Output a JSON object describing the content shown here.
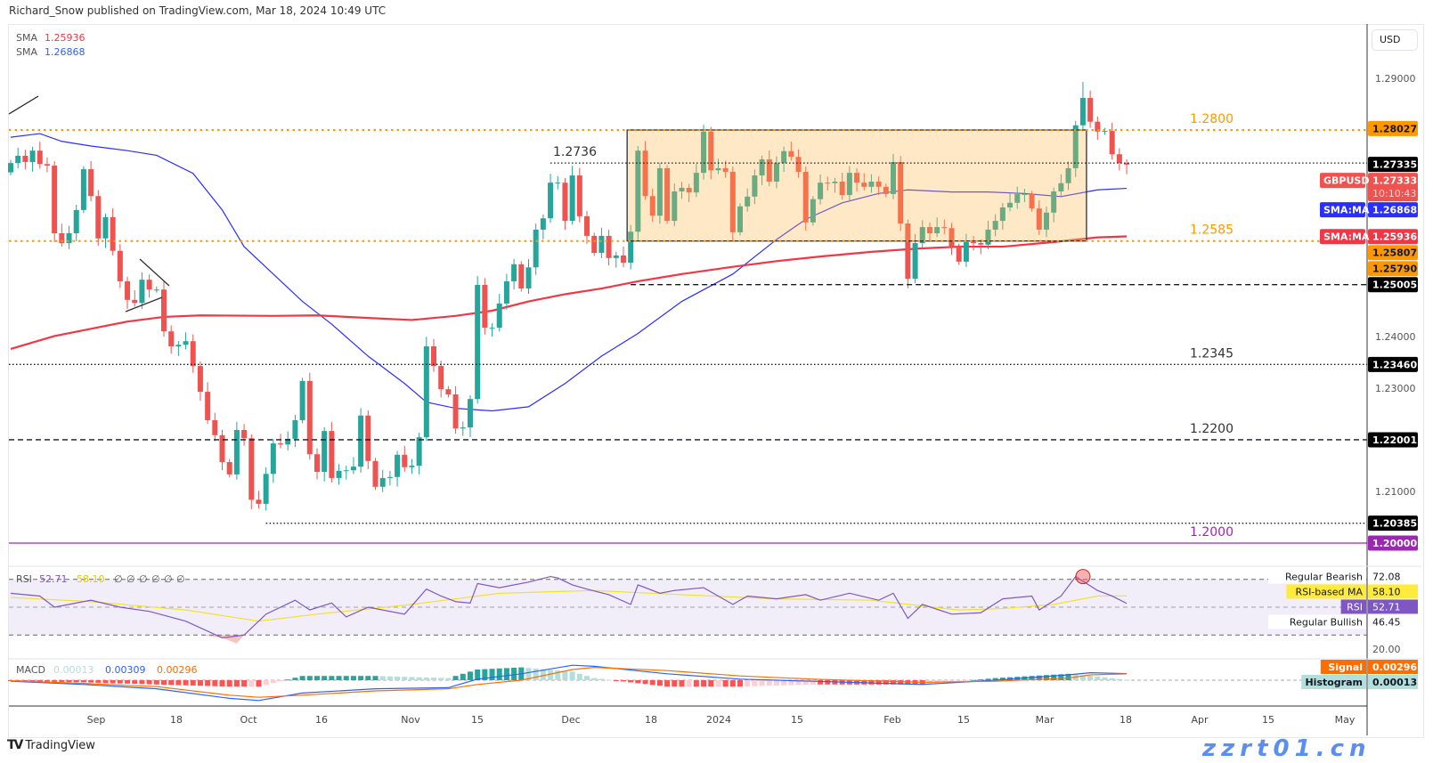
{
  "header": {
    "published": "Richard_Snow published on TradingView.com, Mar 18, 2024 10:49 UTC"
  },
  "legend": {
    "sma_200": {
      "label": "SMA",
      "value": "1.25936",
      "color": "#f23645"
    },
    "sma_50": {
      "label": "SMA",
      "value": "1.26868",
      "color": "#2962ff"
    }
  },
  "currency": "USD",
  "price_axis_ticks": [
    {
      "label": "1.29000",
      "price": 1.29
    },
    {
      "label": "1.24000",
      "price": 1.24
    },
    {
      "label": "1.23000",
      "price": 1.23
    },
    {
      "label": "1.21000",
      "price": 1.21
    }
  ],
  "levels": [
    {
      "label": "1.2800",
      "price": 1.28,
      "color": "#ff9800",
      "style": "dotted-orange",
      "from_bar": 0
    },
    {
      "label": "1.2736",
      "price": 1.2736,
      "color": "#131722",
      "style": "dotted",
      "from_bar": 74
    },
    {
      "label": "1.2585",
      "price": 1.2585,
      "color": "#ff9800",
      "style": "dotted-orange",
      "from_bar": 0
    },
    {
      "label": "",
      "price": 1.25005,
      "color": "#131722",
      "style": "dashed",
      "from_bar": 85
    },
    {
      "label": "1.2345",
      "price": 1.2346,
      "color": "#131722",
      "style": "dotted",
      "from_bar": 0
    },
    {
      "label": "1.2200",
      "price": 1.22001,
      "color": "#131722",
      "style": "dashed",
      "from_bar": 0
    },
    {
      "label": "",
      "price": 1.20385,
      "color": "#131722",
      "style": "dotted",
      "from_bar": 35
    },
    {
      "label": "1.2000",
      "price": 1.2,
      "color": "#9c27b0",
      "style": "solid",
      "from_bar": 0
    }
  ],
  "range_box": {
    "top": 1.28,
    "bottom": 1.2585,
    "from_bar": 85,
    "to_bar": 147
  },
  "badges": [
    {
      "value": "1.28027",
      "price": 1.28027,
      "bg": "#ff9800",
      "fg": "#131722"
    },
    {
      "value": "1.27335",
      "price": 1.27335,
      "bg": "#000000",
      "fg": "#ffffff"
    },
    {
      "value": "1.27333",
      "sub": "10:10:43",
      "tag": "GBPUSD",
      "price": 1.27333,
      "bg": "#ef5350",
      "fg": "#ffffff"
    },
    {
      "value": "1.26868",
      "tag": "SMA:MA",
      "price": 1.26868,
      "bg": "#2a2eff",
      "fg": "#ffffff"
    },
    {
      "value": "1.25936",
      "tag": "SMA:MA",
      "price": 1.25936,
      "bg": "#f23645",
      "fg": "#ffffff"
    },
    {
      "value": "1.25807",
      "price": 1.259,
      "bg": "#ff9800",
      "fg": "#131722"
    },
    {
      "value": "1.25790",
      "price": 1.258,
      "bg": "#ff9800",
      "fg": "#131722"
    },
    {
      "value": "1.25005",
      "price": 1.25005,
      "bg": "#000000",
      "fg": "#ffffff"
    },
    {
      "value": "1.23460",
      "price": 1.2346,
      "bg": "#000000",
      "fg": "#ffffff"
    },
    {
      "value": "1.22001",
      "price": 1.22001,
      "bg": "#000000",
      "fg": "#ffffff"
    },
    {
      "value": "1.20385",
      "price": 1.20385,
      "bg": "#000000",
      "fg": "#ffffff"
    },
    {
      "value": "1.20000",
      "price": 1.2,
      "bg": "#9c27b0",
      "fg": "#ffffff"
    }
  ],
  "x_axis": [
    "Sep",
    "18",
    "Oct",
    "16",
    "Nov",
    "15",
    "Dec",
    "18",
    "2024",
    "15",
    "Feb",
    "15",
    "Mar",
    "18",
    "Apr",
    "15",
    "May"
  ],
  "rsi": {
    "title": "RSI",
    "value": "52.71",
    "ma_value": "58.10",
    "extras": [
      "∅",
      "∅",
      "∅",
      "∅",
      "∅",
      "∅"
    ],
    "value_color": "#7e57c2",
    "ma_color": "#f5e12a",
    "right_labels": [
      {
        "tag": "Regular Bearish",
        "value": "72.08",
        "bg": "#ffffff",
        "fg": "#131722",
        "level": 72.08
      },
      {
        "tag": "RSI-based MA",
        "value": "58.10",
        "bg": "#ffeb3b",
        "fg": "#131722",
        "level": 61.5
      },
      {
        "tag": "RSI",
        "value": "52.71",
        "bg": "#7e57c2",
        "fg": "#ffffff",
        "level": 51.5
      },
      {
        "tag": "Regular Bullish",
        "value": "46.45",
        "bg": "#ffffff",
        "fg": "#131722",
        "level": 41.2
      },
      {
        "tag": "",
        "value": "20.00",
        "bg": "#ffffff",
        "fg": "#555555",
        "level": 20
      }
    ],
    "bands": [
      70,
      50,
      30
    ]
  },
  "macd": {
    "title": "MACD",
    "histogram": "0.00013",
    "macd": "0.00309",
    "signal": "0.00296",
    "colors": {
      "histogram": "#b2dfdb",
      "macd": "#2962ff",
      "signal": "#ff6d00"
    },
    "right_labels": [
      {
        "tag": "Signal",
        "value": "0.00296",
        "bg": "#ff6d00",
        "fg": "#ffffff"
      },
      {
        "tag": "Histogram",
        "value": "0.00013",
        "bg": "#b2dfdb",
        "fg": "#131722"
      }
    ]
  },
  "footer": {
    "logo": "TradingView"
  },
  "watermark": "zzrt01.cn",
  "chart_data": {
    "type": "candlestick",
    "symbol": "GBPUSD",
    "colors": {
      "up": "#26a69a",
      "down": "#ef5350",
      "sma_50": "#2a2eff",
      "sma_200": "#f23645"
    },
    "first_open": 1.2718,
    "closes": [
      1.2736,
      1.275,
      1.2738,
      1.276,
      1.2734,
      1.2731,
      1.26,
      1.2581,
      1.26,
      1.2645,
      1.2724,
      1.2672,
      1.259,
      1.2631,
      1.2566,
      1.2507,
      1.2471,
      1.2465,
      1.251,
      1.2491,
      1.2491,
      1.241,
      1.2381,
      1.2384,
      1.2391,
      1.2343,
      1.2293,
      1.2238,
      1.2209,
      1.2157,
      1.2133,
      1.2219,
      1.2203,
      1.2084,
      1.2076,
      1.2134,
      1.2193,
      1.2191,
      1.2202,
      1.2238,
      1.2314,
      1.2172,
      1.2138,
      1.2217,
      1.2126,
      1.214,
      1.2141,
      1.2148,
      1.2247,
      1.2159,
      1.2109,
      1.2126,
      1.2128,
      1.2171,
      1.2147,
      1.215,
      1.2205,
      1.2381,
      1.2343,
      1.2298,
      1.2288,
      1.2222,
      1.2224,
      1.2279,
      1.25,
      1.2417,
      1.2417,
      1.2464,
      1.2507,
      1.254,
      1.2493,
      1.2534,
      1.2607,
      1.2629,
      1.2698,
      1.2698,
      1.2624,
      1.2712,
      1.2633,
      1.2595,
      1.2562,
      1.2595,
      1.2552,
      1.2557,
      1.2543,
      1.2603,
      1.276,
      1.2672,
      1.2634,
      1.2726,
      1.2624,
      1.2681,
      1.2688,
      1.2679,
      1.2717,
      1.2797,
      1.2722,
      1.2726,
      1.2719,
      1.2602,
      1.2652,
      1.2671,
      1.2712,
      1.2743,
      1.27,
      1.2736,
      1.2759,
      1.2748,
      1.2719,
      1.2621,
      1.2666,
      1.2698,
      1.2697,
      1.27,
      1.2674,
      1.2717,
      1.2698,
      1.269,
      1.27,
      1.269,
      1.2676,
      1.2738,
      1.2619,
      1.2512,
      1.2581,
      1.2612,
      1.26,
      1.2612,
      1.261,
      1.2574,
      1.2545,
      1.2583,
      1.2581,
      1.2578,
      1.2607,
      1.2624,
      1.265,
      1.2659,
      1.2676,
      1.2676,
      1.2648,
      1.2607,
      1.264,
      1.2681,
      1.2697,
      1.2726,
      1.2809,
      1.2862,
      1.2816,
      1.2797,
      1.2798,
      1.2753,
      1.2736,
      1.2733
    ],
    "session_high": 1.2893,
    "sma_50": [
      [
        0,
        1.2786
      ],
      [
        4,
        1.2793
      ],
      [
        7,
        1.2778
      ],
      [
        11,
        1.2769
      ],
      [
        16,
        1.276
      ],
      [
        20,
        1.2751
      ],
      [
        25,
        1.2716
      ],
      [
        29,
        1.2645
      ],
      [
        32,
        1.2574
      ],
      [
        36,
        1.2521
      ],
      [
        40,
        1.2468
      ],
      [
        44,
        1.2424
      ],
      [
        49,
        1.2362
      ],
      [
        54,
        1.2309
      ],
      [
        57,
        1.2273
      ],
      [
        61,
        1.2261
      ],
      [
        66,
        1.2256
      ],
      [
        71,
        1.2264
      ],
      [
        76,
        1.2309
      ],
      [
        81,
        1.2362
      ],
      [
        86,
        1.2406
      ],
      [
        92,
        1.2468
      ],
      [
        99,
        1.2521
      ],
      [
        105,
        1.2588
      ],
      [
        109,
        1.2627
      ],
      [
        114,
        1.2659
      ],
      [
        119,
        1.2677
      ],
      [
        123,
        1.2684
      ],
      [
        129,
        1.268
      ],
      [
        134,
        1.268
      ],
      [
        139,
        1.2677
      ],
      [
        144,
        1.2671
      ],
      [
        149,
        1.2684
      ],
      [
        153,
        1.2687
      ]
    ],
    "sma_200": [
      [
        0,
        1.2376
      ],
      [
        6,
        1.2401
      ],
      [
        11,
        1.2415
      ],
      [
        16,
        1.2429
      ],
      [
        21,
        1.2438
      ],
      [
        26,
        1.2441
      ],
      [
        36,
        1.244
      ],
      [
        42,
        1.2441
      ],
      [
        49,
        1.2436
      ],
      [
        55,
        1.2432
      ],
      [
        61,
        1.244
      ],
      [
        66,
        1.245
      ],
      [
        71,
        1.2468
      ],
      [
        76,
        1.2482
      ],
      [
        81,
        1.2493
      ],
      [
        86,
        1.2507
      ],
      [
        92,
        1.2521
      ],
      [
        99,
        1.2535
      ],
      [
        105,
        1.2546
      ],
      [
        111,
        1.2555
      ],
      [
        118,
        1.2564
      ],
      [
        124,
        1.257
      ],
      [
        130,
        1.2574
      ],
      [
        136,
        1.2574
      ],
      [
        143,
        1.2583
      ],
      [
        149,
        1.2592
      ],
      [
        153,
        1.2594
      ]
    ],
    "rsi": [
      [
        0,
        60
      ],
      [
        4,
        58
      ],
      [
        6,
        50
      ],
      [
        11,
        55
      ],
      [
        15,
        50
      ],
      [
        19,
        47
      ],
      [
        24,
        40
      ],
      [
        29,
        28
      ],
      [
        32,
        30
      ],
      [
        35,
        45
      ],
      [
        39,
        55
      ],
      [
        41,
        48
      ],
      [
        44,
        53
      ],
      [
        46,
        43
      ],
      [
        49,
        50
      ],
      [
        54,
        45
      ],
      [
        57,
        63
      ],
      [
        59,
        58
      ],
      [
        61,
        54
      ],
      [
        63,
        53
      ],
      [
        64,
        67
      ],
      [
        67,
        64
      ],
      [
        71,
        68
      ],
      [
        74,
        72
      ],
      [
        75,
        71
      ],
      [
        77,
        66
      ],
      [
        79,
        63
      ],
      [
        82,
        59
      ],
      [
        85,
        52
      ],
      [
        86,
        66
      ],
      [
        89,
        60
      ],
      [
        91,
        62
      ],
      [
        95,
        64
      ],
      [
        99,
        52
      ],
      [
        101,
        58
      ],
      [
        105,
        56
      ],
      [
        109,
        59
      ],
      [
        111,
        55
      ],
      [
        115,
        60
      ],
      [
        119,
        55
      ],
      [
        121,
        60
      ],
      [
        123,
        42
      ],
      [
        125,
        52
      ],
      [
        129,
        45
      ],
      [
        133,
        46
      ],
      [
        136,
        56
      ],
      [
        140,
        58
      ],
      [
        141,
        48
      ],
      [
        144,
        58
      ],
      [
        146,
        72
      ],
      [
        149,
        62
      ],
      [
        151,
        58
      ],
      [
        153,
        52.71
      ]
    ],
    "rsi_ma": [
      [
        0,
        57
      ],
      [
        11,
        54
      ],
      [
        24,
        48
      ],
      [
        34,
        40
      ],
      [
        42,
        45
      ],
      [
        55,
        52
      ],
      [
        67,
        60
      ],
      [
        80,
        62
      ],
      [
        92,
        59
      ],
      [
        105,
        56
      ],
      [
        118,
        55
      ],
      [
        130,
        48
      ],
      [
        136,
        49
      ],
      [
        143,
        52
      ],
      [
        149,
        58
      ],
      [
        153,
        58.1
      ]
    ],
    "rsi_divergence_bar": 147,
    "macd": [
      [
        0,
        -0.0005,
        -0.0003
      ],
      [
        10,
        -0.002,
        -0.0015
      ],
      [
        20,
        -0.004,
        -0.003
      ],
      [
        30,
        -0.0085,
        -0.007
      ],
      [
        34,
        -0.0095,
        -0.008
      ],
      [
        40,
        -0.006,
        -0.007
      ],
      [
        50,
        -0.004,
        -0.005
      ],
      [
        60,
        -0.0035,
        -0.004
      ],
      [
        64,
        0.0005,
        -0.002
      ],
      [
        70,
        0.003,
        0.0
      ],
      [
        77,
        0.007,
        0.005
      ],
      [
        80,
        0.0065,
        0.006
      ],
      [
        90,
        0.003,
        0.0045
      ],
      [
        100,
        0.0005,
        0.002
      ],
      [
        110,
        -0.0005,
        0.0005
      ],
      [
        125,
        -0.002,
        -0.001
      ],
      [
        135,
        0.0,
        -0.0005
      ],
      [
        145,
        0.0025,
        0.001
      ],
      [
        148,
        0.0035,
        0.0025
      ],
      [
        153,
        0.00309,
        0.00296
      ]
    ]
  }
}
